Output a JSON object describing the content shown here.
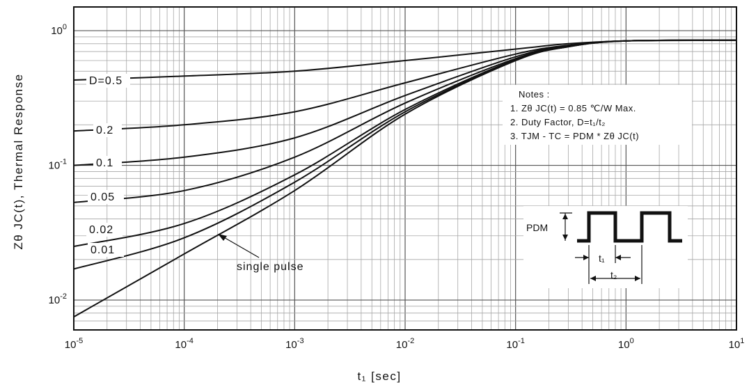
{
  "chart_data": {
    "type": "line",
    "title": "",
    "xlabel": "t₁ [sec]",
    "ylabel": "Zθ JC(t), Thermal Response",
    "x_scale": "log",
    "y_scale": "log",
    "xlim": [
      1e-05,
      10
    ],
    "ylim": [
      0.006,
      1.5
    ],
    "grid": true,
    "x_tick_labels": [
      {
        "value": 1e-05,
        "base": "10",
        "exp": "-5"
      },
      {
        "value": 0.0001,
        "base": "10",
        "exp": "-4"
      },
      {
        "value": 0.001,
        "base": "10",
        "exp": "-3"
      },
      {
        "value": 0.01,
        "base": "10",
        "exp": "-2"
      },
      {
        "value": 0.1,
        "base": "10",
        "exp": "-1"
      },
      {
        "value": 1,
        "base": "10",
        "exp": "0"
      },
      {
        "value": 10,
        "base": "10",
        "exp": "1"
      }
    ],
    "y_tick_labels": [
      {
        "value": 0.01,
        "base": "10",
        "exp": "-2"
      },
      {
        "value": 0.1,
        "base": "10",
        "exp": "-1"
      },
      {
        "value": 1,
        "base": "10",
        "exp": "0"
      }
    ],
    "series": [
      {
        "name": "D=0.5",
        "label": "D=0.5",
        "x": [
          1e-05,
          0.0001,
          0.001,
          0.01,
          0.1,
          0.3,
          1,
          10
        ],
        "y": [
          0.43,
          0.46,
          0.5,
          0.6,
          0.73,
          0.8,
          0.84,
          0.85
        ]
      },
      {
        "name": "0.2",
        "label": "0.2",
        "x": [
          1e-05,
          0.0001,
          0.001,
          0.01,
          0.1,
          0.3,
          1,
          10
        ],
        "y": [
          0.18,
          0.2,
          0.25,
          0.41,
          0.67,
          0.78,
          0.84,
          0.85
        ]
      },
      {
        "name": "0.1",
        "label": "0.1",
        "x": [
          1e-05,
          0.0001,
          0.001,
          0.01,
          0.1,
          0.3,
          1,
          10
        ],
        "y": [
          0.1,
          0.115,
          0.16,
          0.33,
          0.64,
          0.77,
          0.84,
          0.85
        ]
      },
      {
        "name": "0.05",
        "label": "0.05",
        "x": [
          1e-05,
          0.0001,
          0.001,
          0.01,
          0.1,
          0.3,
          1,
          10
        ],
        "y": [
          0.053,
          0.065,
          0.115,
          0.29,
          0.62,
          0.77,
          0.84,
          0.85
        ]
      },
      {
        "name": "0.02",
        "label": "0.02",
        "x": [
          1e-05,
          0.0001,
          0.001,
          0.01,
          0.1,
          0.3,
          1,
          10
        ],
        "y": [
          0.025,
          0.037,
          0.085,
          0.26,
          0.61,
          0.76,
          0.84,
          0.85
        ]
      },
      {
        "name": "0.01",
        "label": "0.01",
        "x": [
          1e-05,
          0.0001,
          0.001,
          0.01,
          0.1,
          0.3,
          1,
          10
        ],
        "y": [
          0.017,
          0.029,
          0.075,
          0.25,
          0.6,
          0.76,
          0.84,
          0.85
        ]
      },
      {
        "name": "single pulse",
        "label": "single pulse",
        "x": [
          1e-05,
          0.0001,
          0.001,
          0.01,
          0.1,
          0.3,
          1,
          10
        ],
        "y": [
          0.0075,
          0.022,
          0.065,
          0.24,
          0.6,
          0.76,
          0.84,
          0.85
        ]
      }
    ],
    "notes": {
      "heading": "Notes :",
      "line1": "1. Zθ JC(t) = 0.85 ℃/W Max.",
      "line2": "2. Duty Factor, D=t₁/t₂",
      "line3": "3. TJM - TC = PDM * Zθ JC(t)"
    },
    "pulse_diagram": {
      "amplitude_label": "PDM",
      "t1_label": "t₁",
      "t2_label": "t₂"
    },
    "colors": {
      "line": "#111111",
      "grid": "#9a9a9a",
      "background": "#ffffff"
    }
  }
}
